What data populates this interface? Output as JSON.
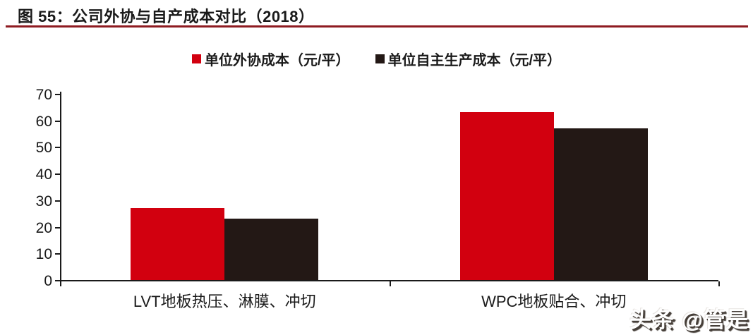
{
  "header": {
    "title": "图 55：公司外协与自产成本对比（2018）"
  },
  "watermark": "头条 @管是",
  "colors": {
    "title_underline": "#8e1b21",
    "axis": "#1a1a1a",
    "series_outsource_red": "#d2000f",
    "series_inhouse_black": "#231815"
  },
  "chart_data": {
    "type": "bar",
    "title": "公司外协与自产成本对比（2018）",
    "categories": [
      "LVT地板热压、淋膜、冲切",
      "WPC地板贴合、冲切"
    ],
    "series": [
      {
        "name": "单位外协成本（元/平）",
        "color": "#d2000f",
        "values": [
          27,
          63
        ]
      },
      {
        "name": "单位自主生产成本（元/平）",
        "color": "#231815",
        "values": [
          23,
          57
        ]
      }
    ],
    "xlabel": "",
    "ylabel": "",
    "ylim": [
      0,
      70
    ],
    "ytick_step": 10,
    "grid": false,
    "legend_position": "top"
  }
}
